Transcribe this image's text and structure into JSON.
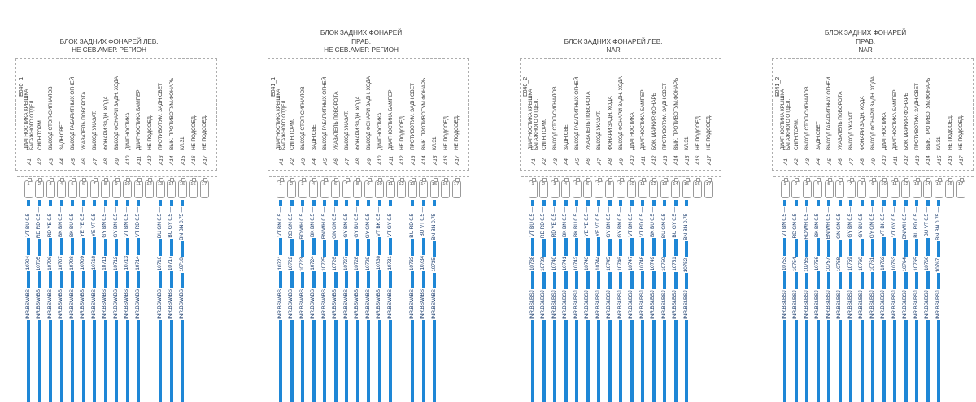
{
  "colors": {
    "wire": "#1e87d6",
    "text": "#3c3c3c",
    "wire_label_text": "#1e3f6f",
    "border": "#adadad"
  },
  "blocks": [
    {
      "id": "E040_1",
      "title": [
        "БЛОК ЗАДНИХ ФОНАРЕЙ ЛЕВ.",
        "НЕ СЕВ.АМЕР. РЕГИОН"
      ],
      "harness": "INR.BSW/BS",
      "pins": [
        {
          "id": "A1",
          "term": "1",
          "desc": "ДИАГНОСТИКА КРЫШКА\nБАГАЖНОГО ОТДЕЛ.",
          "wire": {
            "num": "10704",
            "spec": "VT BU 0.5 —"
          }
        },
        {
          "id": "A2",
          "term": "2",
          "desc": "СИГН.ТОРМ.",
          "wire": {
            "num": "10705",
            "spec": "RD RD 0.5 —"
          }
        },
        {
          "id": "A3",
          "term": "3",
          "desc": "ВЫХОД СТОП-СИГНАЛОВ",
          "wire": {
            "num": "10706",
            "spec": "RD YE 0.5 —"
          }
        },
        {
          "id": "A4",
          "term": "4",
          "desc": "ЗАДН.СВЕТ",
          "wire": {
            "num": "10707",
            "spec": "BK BN 0.5 —"
          }
        },
        {
          "id": "A5",
          "term": "5",
          "desc": "ВЫХОД ГАБАРИТНЫХ ОГНЕЙ",
          "wire": {
            "num": "10708",
            "spec": "BK BU 0.5 —"
          }
        },
        {
          "id": "A6",
          "term": "6",
          "desc": "УКАЗАТЕЛЬ ПОВОРОТА",
          "wire": {
            "num": "10709",
            "spec": "YE YE 0.5 —"
          }
        },
        {
          "id": "A7",
          "term": "7",
          "desc": "ВЫХОД УКАЗАТ.",
          "wire": {
            "num": "10710",
            "spec": "YE VT 0.5 —"
          }
        },
        {
          "id": "A8",
          "term": "8",
          "desc": "ФОНАРИ ЗАДН. ХОДА",
          "wire": {
            "num": "10711",
            "spec": "GY BN 0.5 —"
          }
        },
        {
          "id": "A9",
          "term": "9",
          "desc": "ВЫХОД ФОНАРИ ЗАДН. ХОДА",
          "wire": {
            "num": "10712",
            "spec": "GY BN 0.5 —"
          }
        },
        {
          "id": "A10",
          "term": "10",
          "desc": "ДИАГНОСТИКА",
          "wire": {
            "num": "10713",
            "spec": "VT BN 0.5 —"
          }
        },
        {
          "id": "A11",
          "term": "11",
          "desc": "ДИАГНОСТИКА БАМПЕР",
          "wire": {
            "num": "10714",
            "spec": "VT RD 0.5 —"
          }
        },
        {
          "id": "A12",
          "term": "12",
          "desc": "НЕ ПОДСОЕД.",
          "wire": null
        },
        {
          "id": "A13",
          "term": "13",
          "desc": "ПРОТИВОТУМ. ЗАДН.СВЕТ",
          "wire": {
            "num": "10716",
            "spec": "BU GN 0.5 —"
          }
        },
        {
          "id": "A14",
          "term": "14",
          "desc": "ВЫК. ПРОТИВОТУМ.ФОНАРЬ",
          "wire": {
            "num": "10717",
            "spec": "BU GY 0.5 —"
          }
        },
        {
          "id": "A15",
          "term": "15",
          "desc": "КЛ.31",
          "wire": {
            "num": "10718",
            "spec": "BN BN 0.75 —"
          }
        },
        {
          "id": "A16",
          "term": "16",
          "desc": "НЕ ПОДСОЕД.",
          "wire": null
        },
        {
          "id": "A17",
          "term": "17",
          "desc": "НЕ ПОДСОЕД.",
          "wire": null
        }
      ]
    },
    {
      "id": "E041_1",
      "title": [
        "БЛОК ЗАДНИХ ФОНАРЕЙ",
        "ПРАВ.",
        "НЕ СЕВ.АМЕР. РЕГИОН"
      ],
      "harness": "INR.BSW/BS",
      "pins": [
        {
          "id": "A1",
          "term": "1",
          "desc": "ДИАГНОСТИКА КРЫШКА\nБАГАЖНОГО ОТДЕЛ.",
          "wire": {
            "num": "10721",
            "spec": "VT BN 0.5 —"
          }
        },
        {
          "id": "A2",
          "term": "2",
          "desc": "СИГН.ТОРМ.",
          "wire": {
            "num": "10722",
            "spec": "RD GN 0.5 —"
          }
        },
        {
          "id": "A3",
          "term": "3",
          "desc": "ВЫХОД СТОП-СИГНАЛОВ",
          "wire": {
            "num": "10723",
            "spec": "RD WH 0.5 —"
          }
        },
        {
          "id": "A4",
          "term": "4",
          "desc": "ЗАДН.СВЕТ",
          "wire": {
            "num": "10724",
            "spec": "BK BN 0.5 —"
          }
        },
        {
          "id": "A5",
          "term": "5",
          "desc": "ВЫХОД ГАБАРИТНЫХ ОГНЕЙ",
          "wire": {
            "num": "10725",
            "spec": "BN WH 0.5 —"
          }
        },
        {
          "id": "A6",
          "term": "6",
          "desc": "УКАЗАТЕЛЬ ПОВОРОТА",
          "wire": {
            "num": "10726",
            "spec": "GN GN 0.5 —"
          }
        },
        {
          "id": "A7",
          "term": "7",
          "desc": "ВЫХОД УКАЗАТ.",
          "wire": {
            "num": "10727",
            "spec": "GY BN 0.5 —"
          }
        },
        {
          "id": "A8",
          "term": "8",
          "desc": "ФОНАРИ ЗАДН. ХОДА",
          "wire": {
            "num": "10728",
            "spec": "GY BU 0.5 —"
          }
        },
        {
          "id": "A9",
          "term": "9",
          "desc": "ВЫХОД ФОНАРИ ЗАДН. ХОДА",
          "wire": {
            "num": "10729",
            "spec": "GY GN 0.5 —"
          }
        },
        {
          "id": "A10",
          "term": "10",
          "desc": "ДИАГНОСТИКА",
          "wire": {
            "num": "10730",
            "spec": "VT BK 0.5 —"
          }
        },
        {
          "id": "A11",
          "term": "11",
          "desc": "ДИАГНОСТИКА БАМПЕР",
          "wire": {
            "num": "10731",
            "spec": "VT GY 0.5 —"
          }
        },
        {
          "id": "A12",
          "term": "12",
          "desc": "НЕ ПОДСОЕД.",
          "wire": null
        },
        {
          "id": "A13",
          "term": "13",
          "desc": "ПРОТИВОТУМ. ЗАДН.СВЕТ",
          "wire": {
            "num": "10733",
            "spec": "BU RD 0.5 —"
          }
        },
        {
          "id": "A14",
          "term": "14",
          "desc": "ВЫК. ПРОТИВОТУМ.ФОНАРЬ",
          "wire": {
            "num": "10734",
            "spec": "BU VT 0.5 —"
          }
        },
        {
          "id": "A15",
          "term": "15",
          "desc": "КЛ.31",
          "wire": {
            "num": "10735",
            "spec": "BN BN 0.75 —"
          }
        },
        {
          "id": "A16",
          "term": "16",
          "desc": "НЕ ПОДСОЕД.",
          "wire": null
        },
        {
          "id": "A17",
          "term": "17",
          "desc": "НЕ ПОДСОЕД.",
          "wire": null
        }
      ]
    },
    {
      "id": "E040_2",
      "title": [
        "БЛОК ЗАДНИХ ФОНАРЕЙ ЛЕВ.",
        "NAR"
      ],
      "harness": "INR.BSI/BSJ",
      "pins": [
        {
          "id": "A1",
          "term": "1",
          "desc": "ДИАГНОСТИКА КРЫШКА\nБАГАЖНОГО ОТДЕЛ.",
          "wire": {
            "num": "10738",
            "spec": "VT BU 0.5 —"
          }
        },
        {
          "id": "A2",
          "term": "2",
          "desc": "СИГН.ТОРМ.",
          "wire": {
            "num": "10739",
            "spec": "RD RD 0.5 —"
          }
        },
        {
          "id": "A3",
          "term": "3",
          "desc": "ВЫХОД СТОП-СИГНАЛОВ",
          "wire": {
            "num": "10740",
            "spec": "RD YE 0.5 —"
          }
        },
        {
          "id": "A4",
          "term": "4",
          "desc": "ЗАДН.СВЕТ",
          "wire": {
            "num": "10741",
            "spec": "BK BN 0.5 —"
          }
        },
        {
          "id": "A5",
          "term": "5",
          "desc": "ВЫХОД ГАБАРИТНЫХ ОГНЕЙ",
          "wire": {
            "num": "10742",
            "spec": "BK BU 0.5 —"
          }
        },
        {
          "id": "A6",
          "term": "6",
          "desc": "УКАЗАТЕЛЬ ПОВОРОТА",
          "wire": {
            "num": "10743",
            "spec": "YE YE 0.5 —"
          }
        },
        {
          "id": "A7",
          "term": "7",
          "desc": "ВЫХОД УКАЗАТ.",
          "wire": {
            "num": "10744",
            "spec": "YE VT 0.5 —"
          }
        },
        {
          "id": "A8",
          "term": "8",
          "desc": "ФОНАРИ ЗАДН. ХОДА",
          "wire": {
            "num": "10745",
            "spec": "GY BN 0.5 —"
          }
        },
        {
          "id": "A9",
          "term": "9",
          "desc": "ВЫХОД ФОНАРИ ЗАДН. ХОДА",
          "wire": {
            "num": "10746",
            "spec": "GY BN 0.5 —"
          }
        },
        {
          "id": "A10",
          "term": "10",
          "desc": "ДИАГНОСТИКА",
          "wire": {
            "num": "10747",
            "spec": "VT BN 0.5 —"
          }
        },
        {
          "id": "A11",
          "term": "11",
          "desc": "ДИАГНОСТИКА БАМПЕР",
          "wire": {
            "num": "10748",
            "spec": "VT RD 0.5 —"
          }
        },
        {
          "id": "A12",
          "term": "12",
          "desc": "БОК. МАРКИР. ФОНАРЬ",
          "wire": {
            "num": "10749",
            "spec": "BK BU 0.5 —"
          }
        },
        {
          "id": "A13",
          "term": "13",
          "desc": "ПРОТИВОТУМ. ЗАДН.СВЕТ",
          "wire": {
            "num": "10750",
            "spec": "BU GN 0.5 —"
          }
        },
        {
          "id": "A14",
          "term": "14",
          "desc": "ВЫК. ПРОТИВОТУМ.ФОНАРЬ",
          "wire": {
            "num": "10751",
            "spec": "BU GY 0.5 —"
          }
        },
        {
          "id": "A15",
          "term": "15",
          "desc": "КЛ.31",
          "wire": {
            "num": "10752",
            "spec": "BN BN 0.75 —"
          }
        },
        {
          "id": "A16",
          "term": "16",
          "desc": "НЕ ПОДСОЕД.",
          "wire": null
        },
        {
          "id": "A17",
          "term": "17",
          "desc": "НЕ ПОДСОЕД.",
          "wire": null
        }
      ]
    },
    {
      "id": "E041_2",
      "title": [
        "БЛОК ЗАДНИХ ФОНАРЕЙ",
        "ПРАВ.",
        "NAR"
      ],
      "harness": "INR.BSI/BSJ",
      "pins": [
        {
          "id": "A1",
          "term": "1",
          "desc": "ДИАГНОСТИКА КРЫШКА\nБАГАЖНОГО ОТДЕЛ.",
          "wire": {
            "num": "10753",
            "spec": "VT BN 0.5 —"
          }
        },
        {
          "id": "A2",
          "term": "2",
          "desc": "СИГН.ТОРМ.",
          "wire": {
            "num": "10754",
            "spec": "RD GN 0.5 —"
          }
        },
        {
          "id": "A3",
          "term": "3",
          "desc": "ВЫХОД СТОП-СИГНАЛОВ",
          "wire": {
            "num": "10755",
            "spec": "RD WH 0.5 —"
          }
        },
        {
          "id": "A4",
          "term": "4",
          "desc": "ЗАДН.СВЕТ",
          "wire": {
            "num": "10756",
            "spec": "BK BN 0.5 —"
          }
        },
        {
          "id": "A5",
          "term": "5",
          "desc": "ВЫХОД ГАБАРИТНЫХ ОГНЕЙ",
          "wire": {
            "num": "10757",
            "spec": "BN WH 0.5 —"
          }
        },
        {
          "id": "A6",
          "term": "6",
          "desc": "УКАЗАТЕЛЬ ПОВОРОТА",
          "wire": {
            "num": "10758",
            "spec": "GN GN 0.5 —"
          }
        },
        {
          "id": "A7",
          "term": "7",
          "desc": "ВЫХОД УКАЗАТ.",
          "wire": {
            "num": "10759",
            "spec": "GY BN 0.5 —"
          }
        },
        {
          "id": "A8",
          "term": "8",
          "desc": "ФОНАРИ ЗАДН. ХОДА",
          "wire": {
            "num": "10760",
            "spec": "GY BU 0.5 —"
          }
        },
        {
          "id": "A9",
          "term": "9",
          "desc": "ВЫХОД ФОНАРИ ЗАДН. ХОДА",
          "wire": {
            "num": "10761",
            "spec": "GY GN 0.5 —"
          }
        },
        {
          "id": "A10",
          "term": "10",
          "desc": "ДИАГНОСТИКА",
          "wire": {
            "num": "10762",
            "spec": "VT BK 0.5 —"
          }
        },
        {
          "id": "A11",
          "term": "11",
          "desc": "ДИАГНОСТИКА БАМПЕР",
          "wire": {
            "num": "10763",
            "spec": "VT GY 0.5 —"
          }
        },
        {
          "id": "A12",
          "term": "12",
          "desc": "БОК. МАРКИР. ФОНАРЬ",
          "wire": {
            "num": "10764",
            "spec": "BN WH 0.5 —"
          }
        },
        {
          "id": "A13",
          "term": "13",
          "desc": "ПРОТИВОТУМ. ЗАДН.СВЕТ",
          "wire": {
            "num": "10765",
            "spec": "BU RD 0.5 —"
          }
        },
        {
          "id": "A14",
          "term": "14",
          "desc": "ВЫК. ПРОТИВОТУМ.ФОНАРЬ",
          "wire": {
            "num": "10766",
            "spec": "BU VT 0.5 —"
          }
        },
        {
          "id": "A15",
          "term": "15",
          "desc": "КЛ.31",
          "wire": {
            "num": "10767",
            "spec": "BN BN 0.75 —"
          }
        },
        {
          "id": "A16",
          "term": "16",
          "desc": "НЕ ПОДСОЕД.",
          "wire": null
        },
        {
          "id": "A17",
          "term": "17",
          "desc": "НЕ ПОДСОЕД.",
          "wire": null
        }
      ]
    }
  ]
}
